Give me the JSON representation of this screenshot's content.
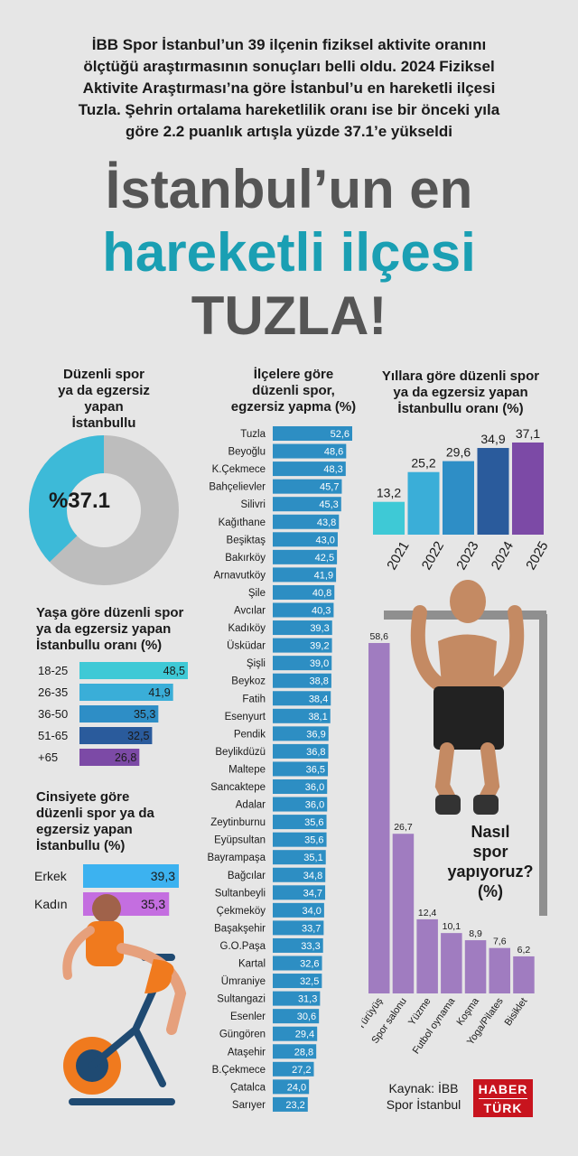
{
  "intro": [
    "İBB Spor İstanbul’un 39 ilçenin fiziksel aktivite oranını",
    "ölçtüğü araştırmasının sonuçları belli oldu. 2024 Fiziksel",
    "Aktivite Araştırması’na göre İstanbul’u en hareketli ilçesi",
    "Tuzla. Şehrin ortalama hareketlilik oranı ise bir önceki yıla",
    "göre 2.2 puanlık artışla yüzde 37.1’e yükseldi"
  ],
  "headline": {
    "line1": "İstanbul’un en",
    "line2": "hareketli ilçesi",
    "line3": "TUZLA!"
  },
  "colors": {
    "teal": "#1a9fb3",
    "donut": "#3dbad8",
    "donut_rest": "#bdbdbd",
    "district_bar": "#2d8ec3",
    "sport_bar": "#a07cc0",
    "male": "#3cb2f0",
    "female": "#c46ee0",
    "logo_red": "#c8141e"
  },
  "source": {
    "line1": "Kaynak: İBB",
    "line2": "Spor İstanbul"
  },
  "logo": {
    "top": "HABER",
    "bottom": "TÜRK"
  },
  "chart_data": [
    {
      "type": "pie",
      "title": "Düzenli spor ya da egzersiz yapan İstanbullu",
      "title_lines": [
        "Düzenli spor",
        "ya da egzersiz",
        "yapan",
        "İstanbullu"
      ],
      "value": 37.1,
      "center_label": "%37.1",
      "colors": [
        "#3dbad8",
        "#bdbdbd"
      ]
    },
    {
      "type": "bar",
      "orientation": "horizontal",
      "title": "İlçelere göre düzenli spor, egzersiz yapma (%)",
      "title_lines": [
        "İlçelere göre",
        "düzenli spor,",
        "egzersiz yapma (%)"
      ],
      "categories": [
        "Tuzla",
        "Beyoğlu",
        "K.Çekmece",
        "Bahçelievler",
        "Silivri",
        "Kağıthane",
        "Beşiktaş",
        "Bakırköy",
        "Arnavutköy",
        "Şile",
        "Avcılar",
        "Kadıköy",
        "Üsküdar",
        "Şişli",
        "Beykoz",
        "Fatih",
        "Esenyurt",
        "Pendik",
        "Beylikdüzü",
        "Maltepe",
        "Sancaktepe",
        "Adalar",
        "Zeytinburnu",
        "Eyüpsultan",
        "Bayrampaşa",
        "Bağcılar",
        "Sultanbeyli",
        "Çekmeköy",
        "Başakşehir",
        "G.O.Paşa",
        "Kartal",
        "Ümraniye",
        "Sultangazi",
        "Esenler",
        "Güngören",
        "Ataşehir",
        "B.Çekmece",
        "Çatalca",
        "Sarıyer"
      ],
      "values": [
        52.6,
        48.6,
        48.3,
        45.7,
        45.3,
        43.8,
        43.0,
        42.5,
        41.9,
        40.8,
        40.3,
        39.3,
        39.2,
        39.0,
        38.8,
        38.4,
        38.1,
        36.9,
        36.8,
        36.5,
        36.0,
        36.0,
        35.6,
        35.6,
        35.1,
        34.8,
        34.7,
        34.0,
        33.7,
        33.3,
        32.6,
        32.5,
        31.3,
        30.6,
        29.4,
        28.8,
        27.2,
        24.0,
        23.2
      ],
      "labels": [
        "52,6",
        "48,6",
        "48,3",
        "45,7",
        "45,3",
        "43,8",
        "43,0",
        "42,5",
        "41,9",
        "40,8",
        "40,3",
        "39,3",
        "39,2",
        "39,0",
        "38,8",
        "38,4",
        "38,1",
        "36,9",
        "36,8",
        "36,5",
        "36,0",
        "36,0",
        "35,6",
        "35,6",
        "35,1",
        "34,8",
        "34,7",
        "34,0",
        "33,7",
        "33,3",
        "32,6",
        "32,5",
        "31,3",
        "30,6",
        "29,4",
        "28,8",
        "27,2",
        "24,0",
        "23,2"
      ]
    },
    {
      "type": "bar",
      "title": "Yıllara göre düzenli spor ya da egzersiz yapan İstanbullu oranı (%)",
      "title_lines": [
        "Yıllara göre düzenli spor",
        "ya da egzersiz yapan",
        "İstanbullu oranı (%)"
      ],
      "categories": [
        "2021",
        "2022",
        "2023",
        "2024",
        "2025"
      ],
      "values": [
        13.2,
        25.2,
        29.6,
        34.9,
        37.1
      ],
      "labels": [
        "13,2",
        "25,2",
        "29,6",
        "34,9",
        "37,1"
      ],
      "colors": [
        "#3ec9d6",
        "#3aaed8",
        "#2e8ec6",
        "#2a5b9c",
        "#7c4aa6"
      ]
    },
    {
      "type": "bar",
      "orientation": "horizontal",
      "title": "Yaşa göre düzenli spor ya da egzersiz yapan İstanbullu oranı (%)",
      "title_lines": [
        "Yaşa göre düzenli spor",
        "ya da egzersiz yapan",
        "İstanbullu oranı (%)"
      ],
      "categories": [
        "18-25",
        "26-35",
        "36-50",
        "51-65",
        "+65"
      ],
      "values": [
        48.5,
        41.9,
        35.3,
        32.5,
        26.8
      ],
      "labels": [
        "48,5",
        "41,9",
        "35,3",
        "32,5",
        "26,8"
      ],
      "colors": [
        "#3ec9d6",
        "#3aaed8",
        "#2e8ec6",
        "#2a5b9c",
        "#7c4aa6"
      ]
    },
    {
      "type": "bar",
      "orientation": "horizontal",
      "title": "Cinsiyete göre düzenli spor ya da egzersiz yapan İstanbullu (%)",
      "title_lines": [
        "Cinsiyete göre",
        "düzenli spor ya da",
        "egzersiz yapan",
        "İstanbullu (%)"
      ],
      "categories": [
        "Erkek",
        "Kadın"
      ],
      "values": [
        39.3,
        35.3
      ],
      "labels": [
        "39,3",
        "35,3"
      ],
      "colors": [
        "#3cb2f0",
        "#c46ee0"
      ]
    },
    {
      "type": "bar",
      "title": "Nasıl spor yapıyoruz? (%)",
      "title_lines": [
        "Nasıl",
        "spor",
        "yapıyoruz?",
        "(%)"
      ],
      "categories": [
        "Yürüyüş",
        "Spor salonu",
        "Yüzme",
        "Futbol oynama",
        "Koşma",
        "Yoga/Pilates",
        "Bisiklet"
      ],
      "values": [
        58.6,
        26.7,
        12.4,
        10.1,
        8.9,
        7.6,
        6.2
      ],
      "labels": [
        "58,6",
        "26,7",
        "12,4",
        "10,1",
        "8,9",
        "7,6",
        "6,2"
      ]
    }
  ]
}
